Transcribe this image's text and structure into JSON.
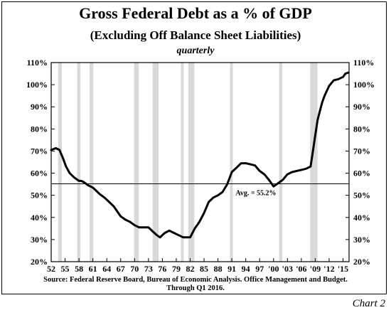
{
  "chart_data": {
    "type": "line",
    "title": "Gross Federal Debt as a % of GDP",
    "subtitle": "(Excluding Off Balance Sheet Liabilities)",
    "frequency": "quarterly",
    "xlim": [
      1952,
      2016.3
    ],
    "ylim": [
      20,
      110
    ],
    "y_ticks": [
      "20%",
      "30%",
      "40%",
      "50%",
      "60%",
      "70%",
      "80%",
      "90%",
      "100%",
      "110%"
    ],
    "x_ticks": [
      {
        "year": 1952,
        "label": "52"
      },
      {
        "year": 1955,
        "label": "55"
      },
      {
        "year": 1958,
        "label": "58"
      },
      {
        "year": 1961,
        "label": "61"
      },
      {
        "year": 1964,
        "label": "64"
      },
      {
        "year": 1967,
        "label": "67"
      },
      {
        "year": 1970,
        "label": "70"
      },
      {
        "year": 1973,
        "label": "73"
      },
      {
        "year": 1976,
        "label": "76"
      },
      {
        "year": 1979,
        "label": "79"
      },
      {
        "year": 1982,
        "label": "82"
      },
      {
        "year": 1985,
        "label": "85"
      },
      {
        "year": 1988,
        "label": "88"
      },
      {
        "year": 1991,
        "label": "91"
      },
      {
        "year": 1994,
        "label": "94"
      },
      {
        "year": 1997,
        "label": "97"
      },
      {
        "year": 2000,
        "label": "'00"
      },
      {
        "year": 2003,
        "label": "'03"
      },
      {
        "year": 2006,
        "label": "'06"
      },
      {
        "year": 2009,
        "label": "'09"
      },
      {
        "year": 2012,
        "label": "'12"
      },
      {
        "year": 2015,
        "label": "'15"
      }
    ],
    "series": [
      {
        "x": [
          1952.0,
          1953.0,
          1953.8,
          1954.5,
          1955.2,
          1956.0,
          1957.0,
          1958.0,
          1958.5,
          1959.0,
          1960.0,
          1961.0,
          1961.5,
          1962.5,
          1963.5,
          1964.5,
          1965.5,
          1966.5,
          1967.0,
          1968.0,
          1969.0,
          1970.0,
          1971.0,
          1972.0,
          1973.0,
          1974.0,
          1974.8,
          1975.5,
          1976.5,
          1977.5,
          1978.5,
          1979.5,
          1980.5,
          1981.5,
          1982.0,
          1983.0,
          1984.0,
          1985.0,
          1986.0,
          1987.0,
          1988.0,
          1989.0,
          1990.0,
          1991.0,
          1992.0,
          1993.0,
          1994.0,
          1995.0,
          1996.0,
          1997.0,
          1998.0,
          1999.0,
          2000.0,
          2001.0,
          2002.0,
          2003.0,
          2004.0,
          2005.0,
          2006.0,
          2007.0,
          2008.0,
          2008.5,
          2009.0,
          2009.5,
          2010.0,
          2010.5,
          2011.0,
          2012.0,
          2013.0,
          2014.0,
          2015.0,
          2015.5,
          2016.2
        ],
        "values": [
          70.5,
          71.3,
          70.5,
          67.0,
          63.0,
          60.0,
          58.0,
          56.5,
          56.5,
          56.0,
          54.5,
          53.5,
          52.5,
          50.5,
          49.0,
          47.0,
          45.0,
          42.0,
          40.5,
          39.0,
          38.0,
          36.5,
          35.5,
          35.5,
          35.5,
          33.5,
          32.0,
          31.0,
          33.0,
          34.0,
          33.0,
          32.0,
          31.0,
          31.0,
          31.0,
          35.0,
          38.0,
          42.0,
          47.0,
          49.0,
          50.0,
          51.5,
          55.0,
          60.5,
          62.5,
          64.5,
          64.5,
          64.0,
          63.5,
          61.0,
          59.5,
          57.0,
          54.0,
          55.5,
          57.0,
          59.5,
          60.5,
          61.0,
          61.5,
          62.0,
          63.0,
          70.0,
          77.0,
          84.0,
          88.0,
          92.0,
          95.0,
          99.5,
          102.0,
          102.5,
          103.5,
          105.0,
          105.5
        ]
      }
    ],
    "average_line": {
      "value": 55.2,
      "label": "Avg. = 55.2%"
    },
    "recession_bands": [
      [
        1953.5,
        1954.3
      ],
      [
        1957.6,
        1958.3
      ],
      [
        1960.3,
        1961.1
      ],
      [
        1969.9,
        1970.9
      ],
      [
        1973.9,
        1975.2
      ],
      [
        1980.0,
        1980.6
      ],
      [
        1981.6,
        1982.9
      ],
      [
        1990.6,
        1991.2
      ],
      [
        2001.2,
        2001.9
      ],
      [
        2007.9,
        2009.5
      ]
    ],
    "colors": {
      "line": "#000000",
      "recession": "#d9d9d9",
      "avg_line": "#000000"
    },
    "grid": false
  },
  "source": {
    "line1": "Source:  Federal Reserve Board, Bureau of Economic Analysis.  Office Management and Budget.",
    "line2": "Through Q1 2016."
  },
  "chart_label": "Chart 2"
}
